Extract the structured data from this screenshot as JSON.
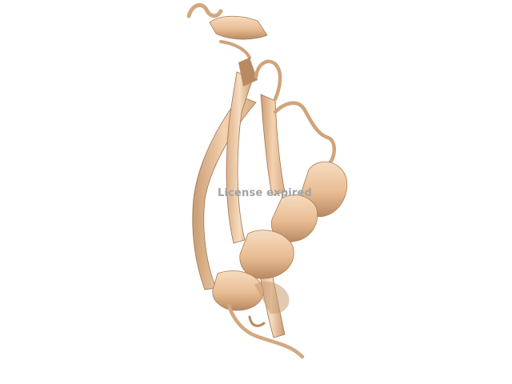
{
  "scene": {
    "background": "#ffffff",
    "cartoon_color": "#f2c8a0",
    "cartoon_shadow": "#c89a72",
    "cartoon_dark": "#8a6446"
  },
  "watermark": {
    "text": "License expired"
  }
}
